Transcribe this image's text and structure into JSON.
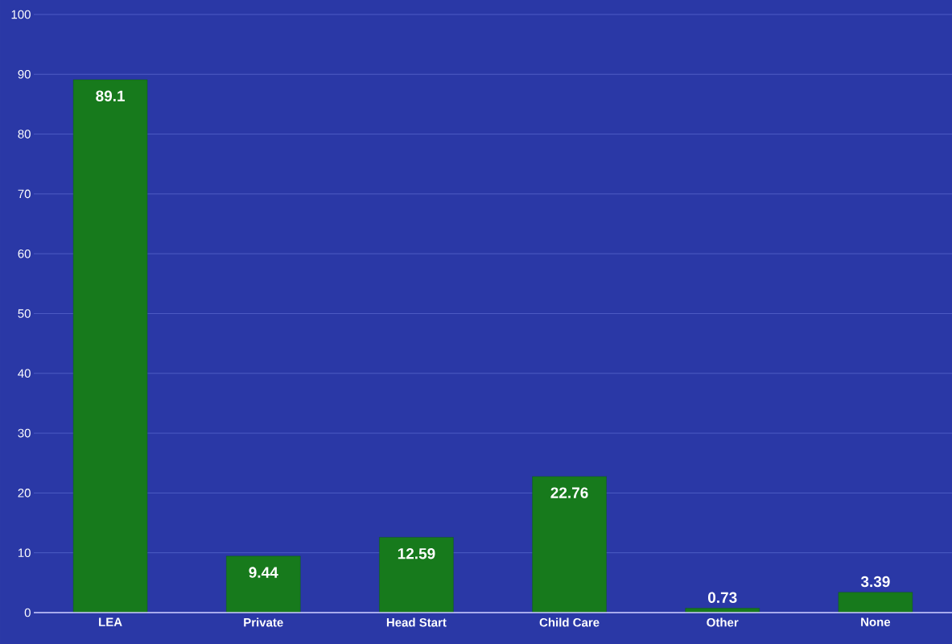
{
  "chart_data": {
    "type": "bar",
    "categories": [
      "LEA",
      "Private",
      "Head Start",
      "Child Care",
      "Other",
      "None"
    ],
    "values": [
      89.1,
      9.44,
      12.59,
      22.76,
      0.73,
      3.39
    ],
    "color": "#177a1c",
    "ylim": [
      0,
      100
    ],
    "yticks": [
      0,
      10,
      20,
      30,
      40,
      50,
      60,
      70,
      80,
      90,
      100
    ],
    "grid": "y",
    "data_labels": true
  }
}
